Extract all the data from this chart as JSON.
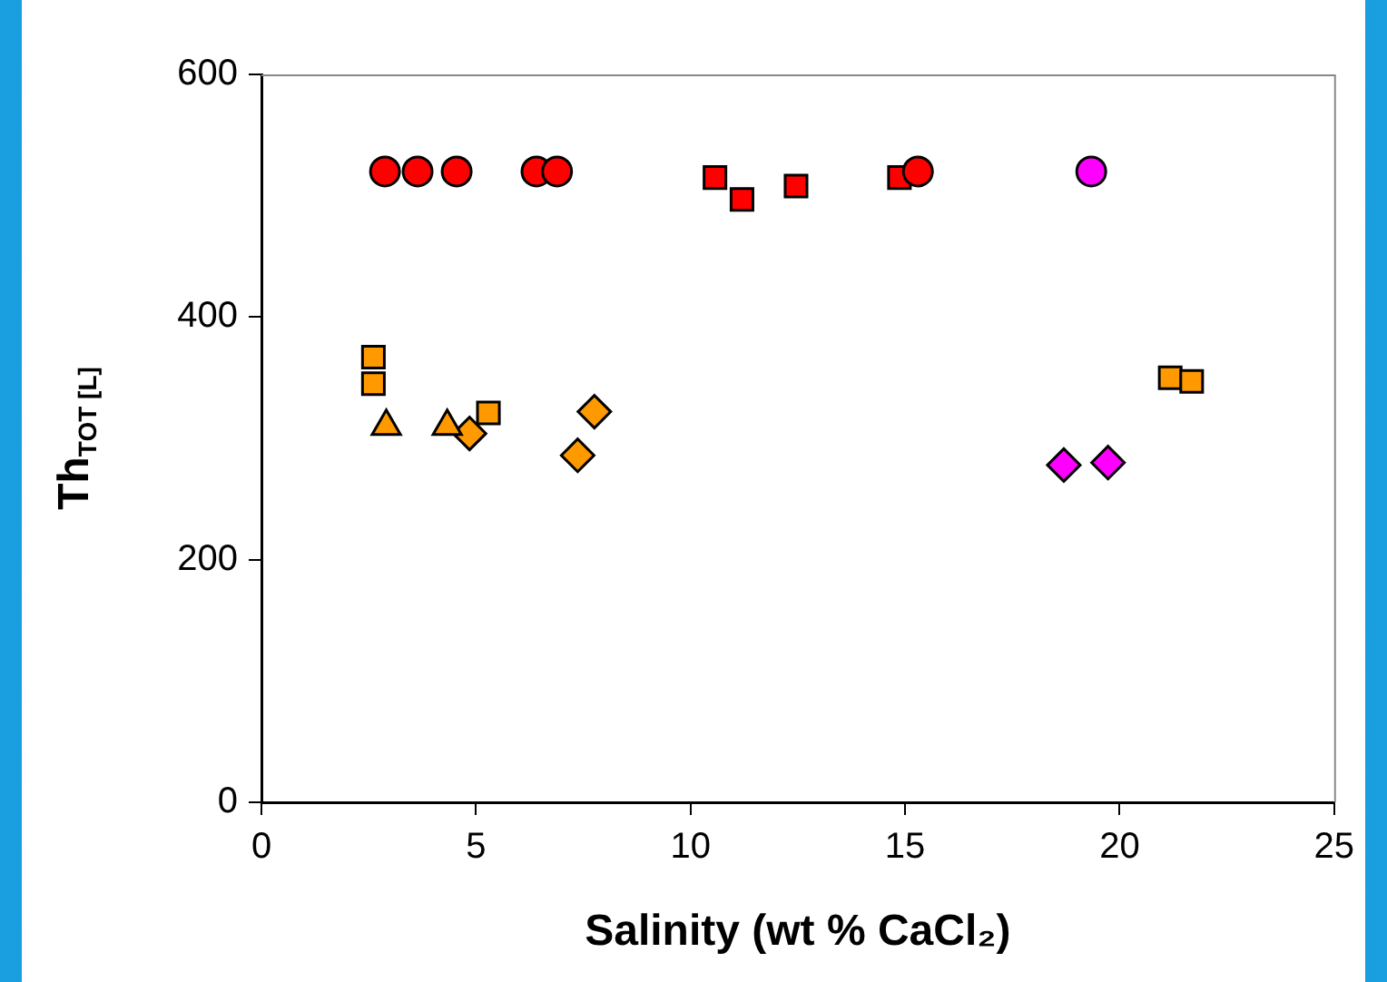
{
  "chart_data": {
    "type": "scatter",
    "xlabel": "Salinity (wt % CaCl₂)",
    "ylabel": "Th$_{TOT [L]}$",
    "xlim": [
      0,
      25
    ],
    "xticks": [
      0,
      5,
      10,
      15,
      20,
      25
    ],
    "ylim": [
      0,
      600
    ],
    "yticks": [
      0,
      200,
      400,
      600
    ],
    "grid": false,
    "legend": false,
    "series": [
      {
        "color": "#ff0000",
        "marker": "circle",
        "x": [
          2.88,
          3.64,
          4.55,
          6.41,
          6.89,
          15.3
        ],
        "values": [
          520,
          520,
          520,
          520,
          520,
          520
        ]
      },
      {
        "color": "#ff00ff",
        "marker": "circle",
        "x": [
          19.34
        ],
        "values": [
          520
        ]
      },
      {
        "color": "#ff0000",
        "marker": "square",
        "x": [
          10.57,
          11.2,
          12.46,
          14.87
        ],
        "values": [
          515,
          497,
          508,
          515
        ]
      },
      {
        "color": "#ff9900",
        "marker": "square",
        "x": [
          2.61,
          2.61,
          5.29,
          21.18,
          21.68
        ],
        "values": [
          367,
          345,
          321,
          350,
          347
        ]
      },
      {
        "color": "#ff9900",
        "marker": "triangle",
        "x": [
          2.91,
          4.33
        ],
        "values": [
          310,
          310
        ]
      },
      {
        "color": "#ff9900",
        "marker": "diamond",
        "x": [
          4.85,
          7.37,
          7.76
        ],
        "values": [
          304,
          286,
          322
        ]
      },
      {
        "color": "#ff00ff",
        "marker": "diamond",
        "x": [
          18.7,
          19.73
        ],
        "values": [
          278,
          280
        ]
      }
    ]
  }
}
